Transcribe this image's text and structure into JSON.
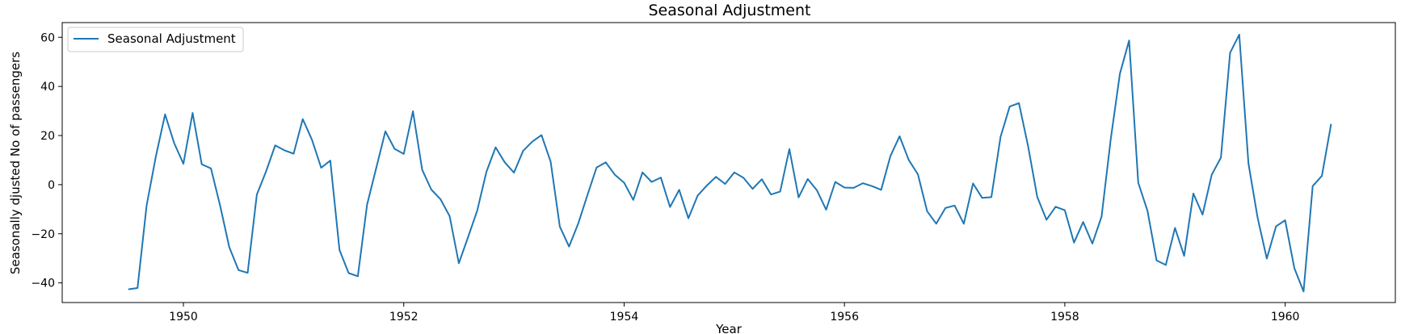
{
  "chart_data": {
    "type": "line",
    "title": "Seasonal Adjustment",
    "xlabel": "Year",
    "ylabel": "Seasonally djusted No of passengers",
    "xlim": [
      1948.9,
      1961.0
    ],
    "ylim": [
      -48,
      66
    ],
    "xticks": [
      1950,
      1952,
      1954,
      1956,
      1958,
      1960
    ],
    "yticks": [
      -40,
      -20,
      0,
      20,
      40,
      60
    ],
    "grid": false,
    "legend_position": "top-left",
    "series": [
      {
        "name": "Seasonal Adjustment",
        "color": "#1f77b4",
        "x_start": 1949.5,
        "x_step": 0.0833333,
        "values": [
          -42.6,
          -42.1,
          -8.4,
          11.5,
          28.6,
          16.9,
          8.5,
          29.2,
          8.3,
          6.6,
          -8.6,
          -25.5,
          -34.8,
          -35.9,
          -4.0,
          5.4,
          16.0,
          14.0,
          12.6,
          26.7,
          18.3,
          6.9,
          9.8,
          -26.6,
          -36.0,
          -37.3,
          -8.2,
          6.7,
          21.7,
          14.6,
          12.5,
          29.9,
          6.1,
          -2.0,
          -5.9,
          -12.8,
          -32.0,
          -21.4,
          -10.6,
          5.2,
          15.2,
          9.1,
          4.9,
          13.8,
          17.5,
          20.2,
          9.4,
          -17.1,
          -25.2,
          -15.9,
          -4.3,
          7.0,
          9.1,
          4.0,
          0.8,
          -6.2,
          5.0,
          1.1,
          2.9,
          -9.1,
          -2.1,
          -13.7,
          -4.5,
          -0.4,
          3.2,
          0.3,
          5.0,
          2.8,
          -1.7,
          2.2,
          -4.0,
          -2.8,
          14.5,
          -5.2,
          2.3,
          -2.3,
          -10.2,
          1.1,
          -1.2,
          -1.3,
          0.6,
          -0.6,
          -2.1,
          11.6,
          19.7,
          10.1,
          4.2,
          -10.8,
          -15.9,
          -9.5,
          -8.5,
          -15.9,
          0.5,
          -5.4,
          -5.1,
          19.5,
          31.8,
          33.2,
          15.6,
          -5.0,
          -14.3,
          -9.0,
          -10.4,
          -23.6,
          -15.2,
          -24.0,
          -13.0,
          18.4,
          45.2,
          58.7,
          0.8,
          -10.6,
          -30.9,
          -32.7,
          -17.6,
          -29.0,
          -3.6,
          -12.2,
          4.0,
          11.0,
          53.7,
          61.1,
          8.6,
          -13.4,
          -30.1,
          -17.0,
          -14.5,
          -34.0,
          -43.5,
          -0.6,
          3.6,
          24.7
        ]
      }
    ]
  }
}
